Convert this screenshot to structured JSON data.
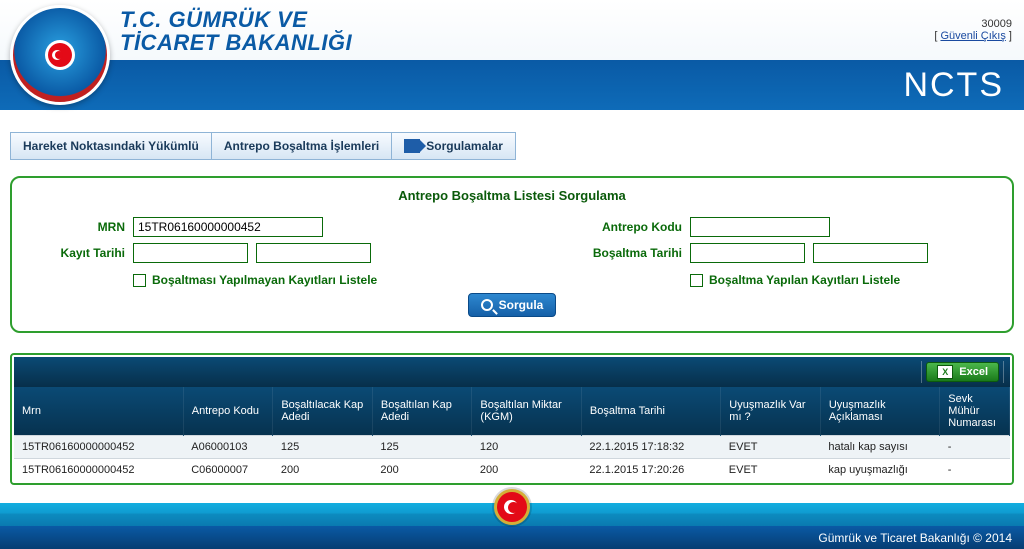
{
  "colors": {
    "brand_blue": "#0a5aa5",
    "brand_blue_light": "#0e6bb8",
    "panel_border": "#2e9e2e",
    "label_green": "#0a6a0a",
    "table_header_bg_top": "#0b4a75",
    "table_header_bg_bottom": "#06324f",
    "excel_green": "#1a7a1a",
    "row_alt": "#eef3f6",
    "red": "#e30a17"
  },
  "header": {
    "ministry_line1": "T.C. GÜMRÜK VE",
    "ministry_line2": "TİCARET BAKANLIĞI",
    "user_id": "30009",
    "logout_label": "Güvenli Çıkış",
    "system_name": "NCTS"
  },
  "menubar": {
    "items": [
      {
        "label": "Hareket Noktasındaki Yükümlü",
        "has_arrow": false
      },
      {
        "label": "Antrepo Boşaltma İşlemleri",
        "has_arrow": false
      },
      {
        "label": "Sorgulamalar",
        "has_arrow": true
      }
    ]
  },
  "panel": {
    "title": "Antrepo Boşaltma Listesi Sorgulama",
    "mrn_label": "MRN",
    "mrn_value": "15TR06160000000452",
    "kayit_tarihi_label": "Kayıt Tarihi",
    "kayit_tarihi_from": "",
    "kayit_tarihi_to": "",
    "antrepo_kodu_label": "Antrepo Kodu",
    "antrepo_kodu_value": "",
    "bosaltma_tarihi_label": "Boşaltma Tarihi",
    "bosaltma_tarihi_from": "",
    "bosaltma_tarihi_to": "",
    "chk_left_label": "Boşaltması Yapılmayan Kayıtları Listele",
    "chk_right_label": "Boşaltma Yapılan Kayıtları Listele",
    "sorgula_label": "Sorgula"
  },
  "results": {
    "excel_label": "Excel",
    "columns": [
      "Mrn",
      "Antrepo Kodu",
      "Boşaltılacak Kap Adedi",
      "Boşaltılan Kap Adedi",
      "Boşaltılan Miktar (KGM)",
      "Boşaltma Tarihi",
      "Uyuşmazlık Var mı ?",
      "Uyuşmazlık Açıklaması",
      "Sevk Mühür Numarası"
    ],
    "col_widths_pct": [
      17,
      9,
      10,
      10,
      11,
      14,
      10,
      12,
      7
    ],
    "rows": [
      [
        "15TR06160000000452",
        "A06000103",
        "125",
        "125",
        "120",
        "22.1.2015 17:18:32",
        "EVET",
        "hatalı kap sayısı",
        "-"
      ],
      [
        "15TR06160000000452",
        "C06000007",
        "200",
        "200",
        "200",
        "22.1.2015 17:20:26",
        "EVET",
        "kap uyuşmazlığı",
        "-"
      ]
    ]
  },
  "footer": {
    "text": "Gümrük ve Ticaret Bakanlığı © 2014"
  }
}
